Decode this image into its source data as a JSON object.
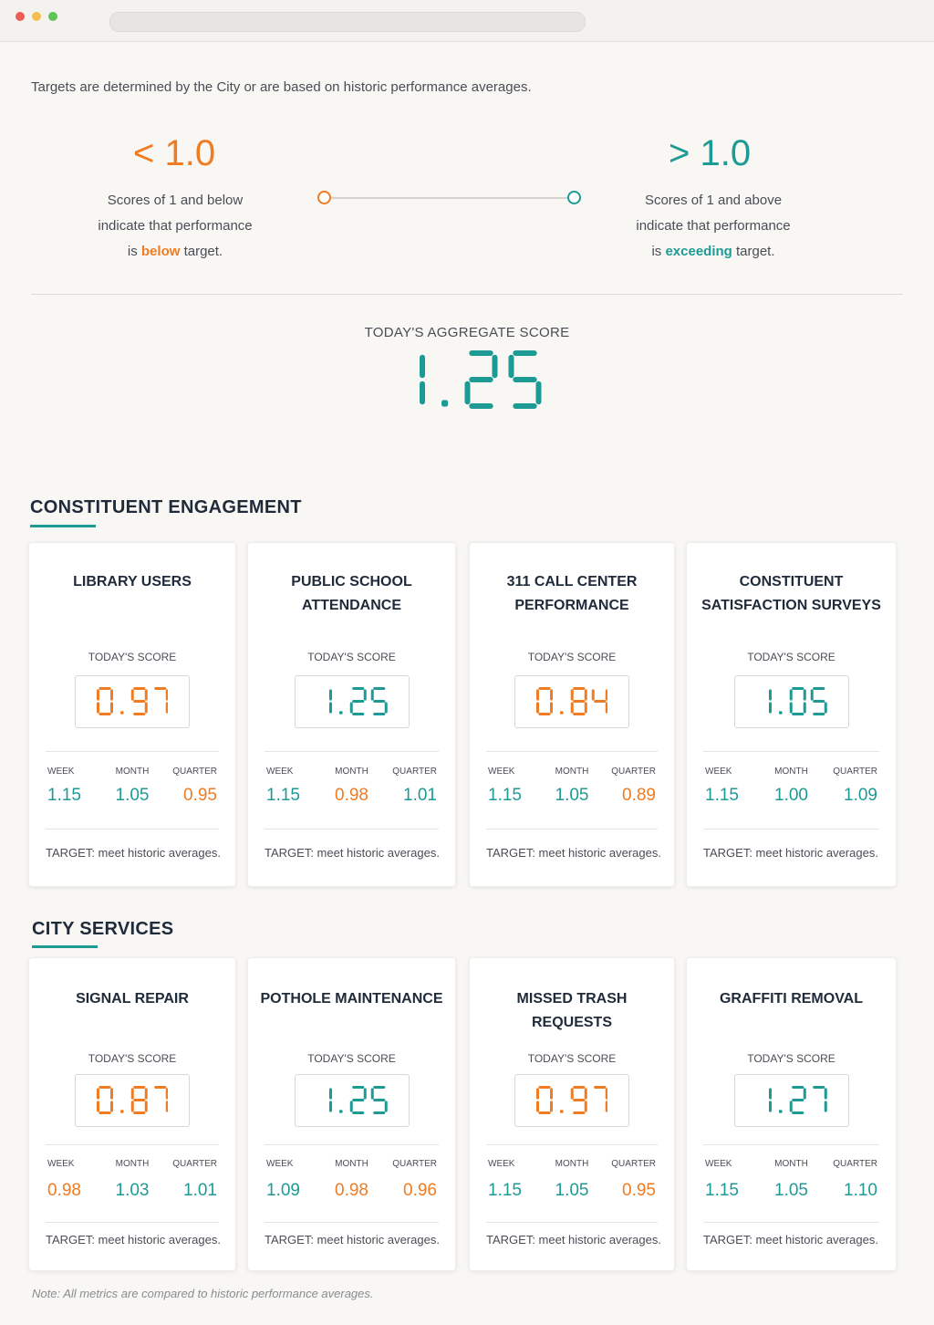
{
  "intro": "Targets are determined by the City or are based on historic performance averages.",
  "legend": {
    "below": {
      "value": "< 1.0",
      "line1": "Scores of 1 and below",
      "line2": "indicate that performance",
      "pre": "is ",
      "emph": "below",
      "post": " target."
    },
    "above": {
      "value": "> 1.0",
      "line1": "Scores of 1 and above",
      "line2": "indicate that performance",
      "pre": "is ",
      "emph": "exceeding",
      "post": " target."
    }
  },
  "aggregate": {
    "label": "TODAY'S AGGREGATE SCORE",
    "value": "1.25"
  },
  "colors": {
    "below": "#ef7b22",
    "above": "#1e9a95"
  },
  "labels": {
    "today": "TODAY'S SCORE",
    "week": "WEEK",
    "month": "MONTH",
    "quarter": "QUARTER"
  },
  "sections": [
    {
      "title": "CONSTITUENT ENGAGEMENT",
      "cards": [
        {
          "title": [
            "LIBRARY USERS"
          ],
          "score": "0.97",
          "week": "1.15",
          "month": "1.05",
          "quarter": "0.95",
          "target": "TARGET: meet historic averages."
        },
        {
          "title": [
            "PUBLIC SCHOOL",
            "ATTENDANCE"
          ],
          "score": "1.25",
          "week": "1.15",
          "month": "0.98",
          "quarter": "1.01",
          "target": "TARGET: meet historic averages."
        },
        {
          "title": [
            "311 CALL CENTER",
            "PERFORMANCE"
          ],
          "score": "0.84",
          "week": "1.15",
          "month": "1.05",
          "quarter": "0.89",
          "target": "TARGET: meet historic averages."
        },
        {
          "title": [
            "CONSTITUENT",
            "SATISFACTION SURVEYS"
          ],
          "score": "1.05",
          "week": "1.15",
          "month": "1.00",
          "quarter": "1.09",
          "target": "TARGET: meet historic averages."
        }
      ]
    },
    {
      "title": "CITY SERVICES",
      "cards": [
        {
          "title": [
            "SIGNAL REPAIR"
          ],
          "score": "0.87",
          "week": "0.98",
          "month": "1.03",
          "quarter": "1.01",
          "target": "TARGET: meet historic averages."
        },
        {
          "title": [
            "POTHOLE MAINTENANCE"
          ],
          "score": "1.25",
          "week": "1.09",
          "month": "0.98",
          "quarter": "0.96",
          "target": "TARGET: meet historic averages."
        },
        {
          "title": [
            "MISSED TRASH",
            "REQUESTS"
          ],
          "score": "0.97",
          "week": "1.15",
          "month": "1.05",
          "quarter": "0.95",
          "target": "TARGET: meet historic averages."
        },
        {
          "title": [
            "GRAFFITI REMOVAL"
          ],
          "score": "1.27",
          "week": "1.15",
          "month": "1.05",
          "quarter": "1.10",
          "target": "TARGET: meet historic averages."
        }
      ]
    }
  ],
  "note": "Note: All metrics are compared to historic performance averages."
}
